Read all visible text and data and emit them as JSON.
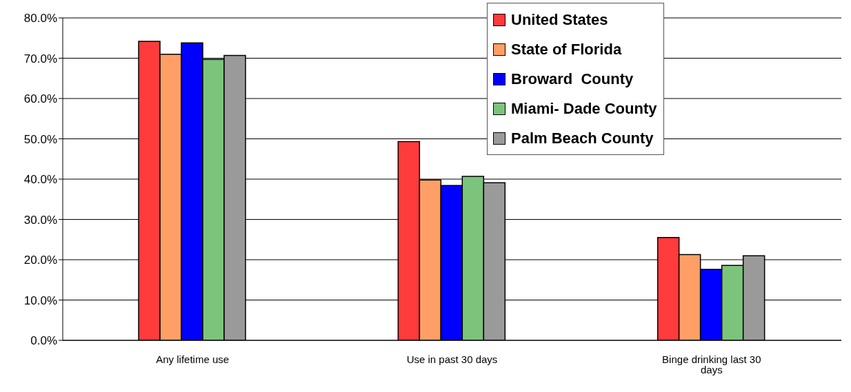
{
  "chart_data": {
    "type": "bar",
    "categories": [
      "Any lifetime use",
      "Use in  past 30 days",
      "Binge drinking last 30 days"
    ],
    "series": [
      {
        "name": "United States",
        "color": "#ff3b3b",
        "values": [
          74.2,
          49.3,
          25.5
        ]
      },
      {
        "name": "State of Florida",
        "color": "#ff9f66",
        "values": [
          71.0,
          39.8,
          21.3
        ]
      },
      {
        "name": "Broward  County",
        "color": "#0000ff",
        "values": [
          73.8,
          38.4,
          17.6
        ]
      },
      {
        "name": "Miami- Dade County",
        "color": "#7cc47c",
        "values": [
          69.7,
          40.7,
          18.6
        ]
      },
      {
        "name": "Palm Beach County",
        "color": "#9a9a9a",
        "values": [
          70.7,
          39.1,
          21.0
        ]
      }
    ],
    "ylim": [
      0,
      80
    ],
    "yticks": [
      {
        "value": 0,
        "label": "0.0%"
      },
      {
        "value": 10,
        "label": "10.0%"
      },
      {
        "value": 20,
        "label": "20.0%"
      },
      {
        "value": 30,
        "label": "30.0%"
      },
      {
        "value": 40,
        "label": "40.0%"
      },
      {
        "value": 50,
        "label": "50.0%"
      },
      {
        "value": 60,
        "label": "60.0%"
      },
      {
        "value": 70,
        "label": "70.0%"
      },
      {
        "value": 80,
        "label": "80.0%"
      }
    ],
    "grid": "y",
    "legend": "top right"
  }
}
